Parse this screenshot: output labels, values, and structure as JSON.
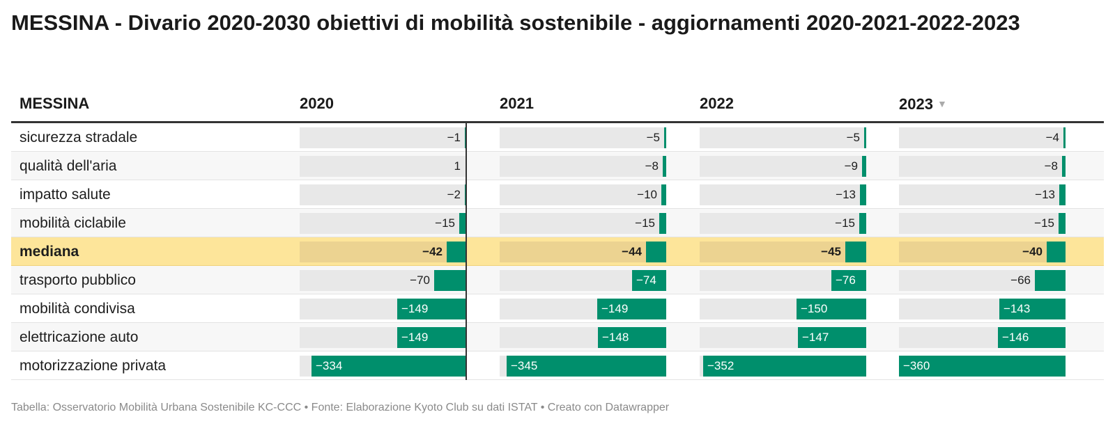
{
  "title": "MESSINA - Divario 2020-2030 obiettivi di mobilità sostenibile - aggiornamenti 2020-2021-2022-2023",
  "footer": "Tabella: Osservatorio Mobilità Urbana Sostenibile KC-CCC • Fonte: Elaborazione Kyoto Club su dati ISTAT • Creato con Datawrapper",
  "colors": {
    "bar": "#008f6c",
    "highlight_row": "#fde59a",
    "cell_bg": "#e8e8e8"
  },
  "sort_icon": "triangle-down-icon",
  "chart_data": {
    "type": "table",
    "row_header": "MESSINA",
    "columns": [
      "2020",
      "2021",
      "2022",
      "2023"
    ],
    "sorted_column": "2023",
    "sort_direction": "descending",
    "highlighted_row": "mediana",
    "value_range": [
      -360,
      1
    ],
    "rows": [
      {
        "label": "sicurezza stradale",
        "values": [
          -1,
          -5,
          -5,
          -4
        ]
      },
      {
        "label": "qualità dell'aria",
        "values": [
          1,
          -8,
          -9,
          -8
        ]
      },
      {
        "label": "impatto salute",
        "values": [
          -2,
          -10,
          -13,
          -13
        ]
      },
      {
        "label": "mobilità ciclabile",
        "values": [
          -15,
          -15,
          -15,
          -15
        ]
      },
      {
        "label": "mediana",
        "values": [
          -42,
          -44,
          -45,
          -40
        ]
      },
      {
        "label": "trasporto pubblico",
        "values": [
          -70,
          -74,
          -76,
          -66
        ]
      },
      {
        "label": "mobilità condivisa",
        "values": [
          -149,
          -149,
          -150,
          -143
        ]
      },
      {
        "label": "elettricazione auto",
        "values": [
          -149,
          -148,
          -147,
          -146
        ]
      },
      {
        "label": "motorizzazione privata",
        "values": [
          -334,
          -345,
          -352,
          -360
        ]
      }
    ]
  }
}
